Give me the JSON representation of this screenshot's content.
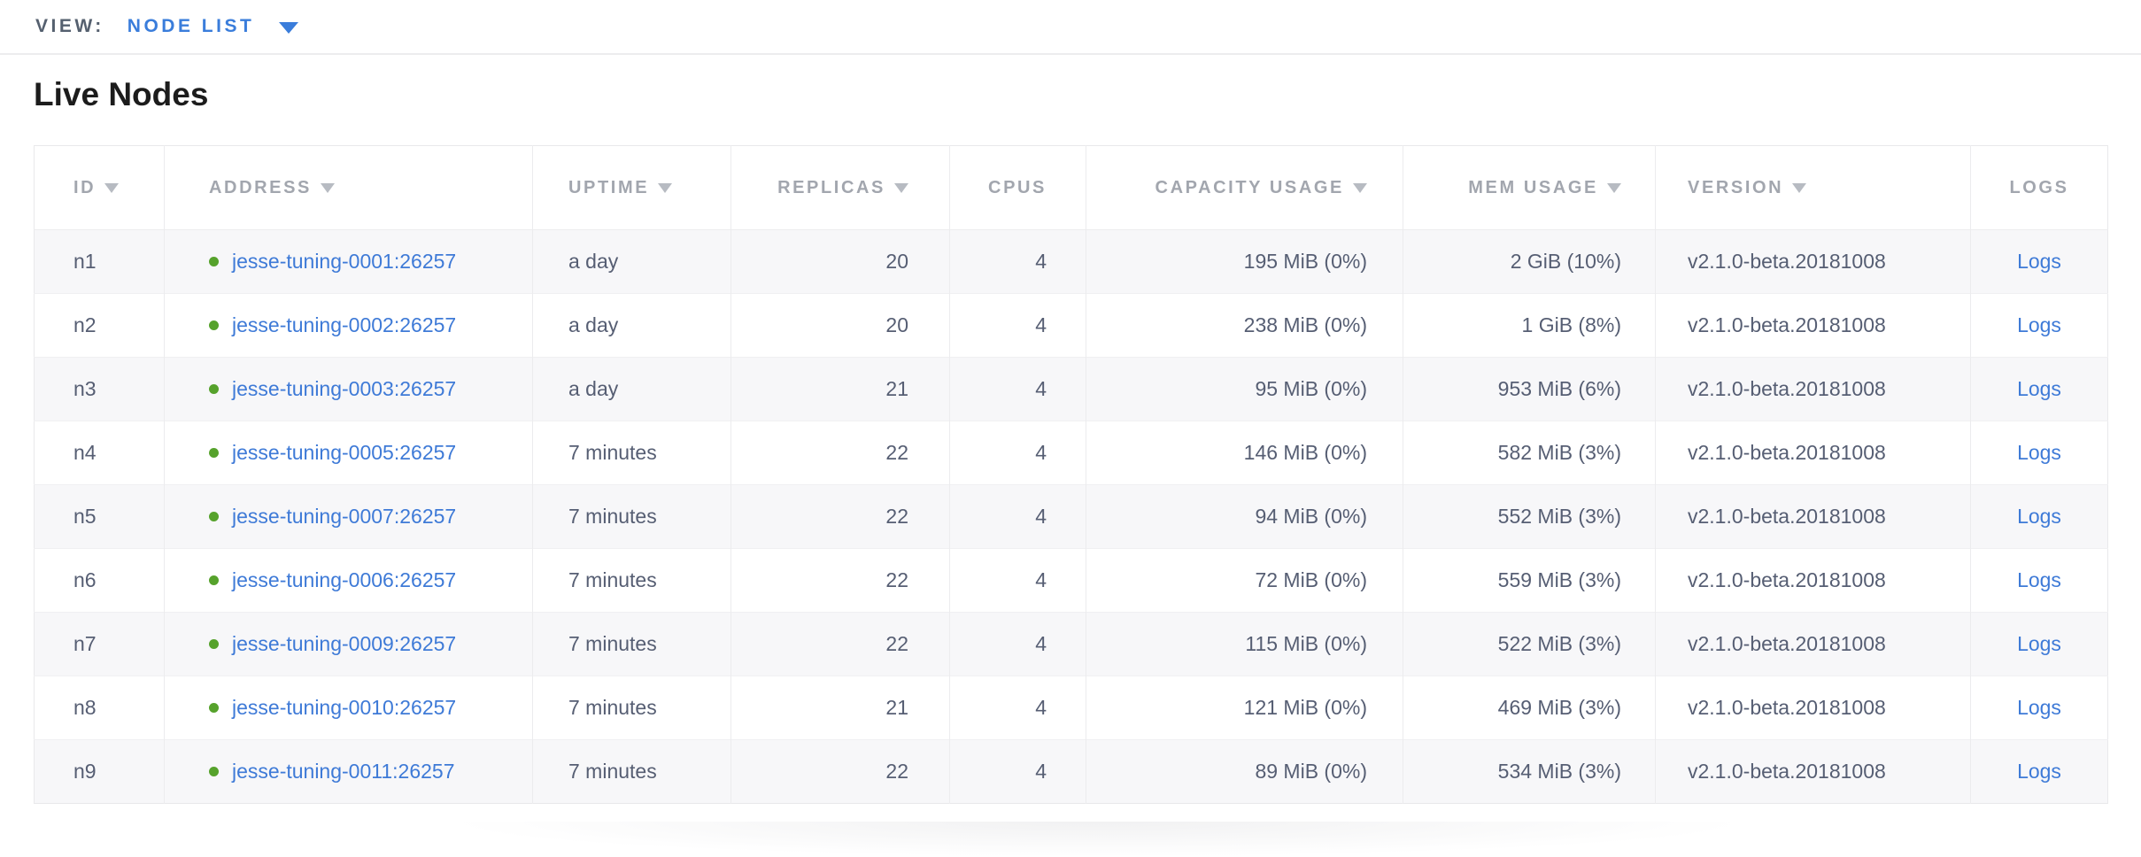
{
  "topbar": {
    "view_label": "VIEW:",
    "view_value": "NODE LIST"
  },
  "page": {
    "title": "Live Nodes"
  },
  "colors": {
    "accent_blue": "#3a7ddb",
    "link_blue": "#3e7ad7",
    "live_green": "#56a22c",
    "header_gray": "#a2a6ae",
    "cell_slate": "#565e73",
    "row_alt_bg": "#f7f7f9"
  },
  "icons": {
    "dropdown_caret": "caret-down",
    "sort_caret": "caret-down-filled",
    "node_status": "live-green-dot"
  },
  "table": {
    "columns": [
      {
        "key": "id",
        "label": "ID",
        "sortable": true
      },
      {
        "key": "address",
        "label": "ADDRESS",
        "sortable": true
      },
      {
        "key": "uptime",
        "label": "UPTIME",
        "sortable": true
      },
      {
        "key": "replicas",
        "label": "REPLICAS",
        "sortable": true
      },
      {
        "key": "cpus",
        "label": "CPUS",
        "sortable": false
      },
      {
        "key": "capacity",
        "label": "CAPACITY USAGE",
        "sortable": true
      },
      {
        "key": "mem",
        "label": "MEM USAGE",
        "sortable": true
      },
      {
        "key": "version",
        "label": "VERSION",
        "sortable": true
      },
      {
        "key": "logs",
        "label": "LOGS",
        "sortable": false
      }
    ],
    "rows": [
      {
        "id": "n1",
        "address": "jesse-tuning-0001:26257",
        "uptime": "a day",
        "replicas": "20",
        "cpus": "4",
        "capacity": "195 MiB (0%)",
        "mem": "2 GiB (10%)",
        "version": "v2.1.0-beta.20181008",
        "logs": "Logs"
      },
      {
        "id": "n2",
        "address": "jesse-tuning-0002:26257",
        "uptime": "a day",
        "replicas": "20",
        "cpus": "4",
        "capacity": "238 MiB (0%)",
        "mem": "1 GiB (8%)",
        "version": "v2.1.0-beta.20181008",
        "logs": "Logs"
      },
      {
        "id": "n3",
        "address": "jesse-tuning-0003:26257",
        "uptime": "a day",
        "replicas": "21",
        "cpus": "4",
        "capacity": "95 MiB (0%)",
        "mem": "953 MiB (6%)",
        "version": "v2.1.0-beta.20181008",
        "logs": "Logs"
      },
      {
        "id": "n4",
        "address": "jesse-tuning-0005:26257",
        "uptime": "7 minutes",
        "replicas": "22",
        "cpus": "4",
        "capacity": "146 MiB (0%)",
        "mem": "582 MiB (3%)",
        "version": "v2.1.0-beta.20181008",
        "logs": "Logs"
      },
      {
        "id": "n5",
        "address": "jesse-tuning-0007:26257",
        "uptime": "7 minutes",
        "replicas": "22",
        "cpus": "4",
        "capacity": "94 MiB (0%)",
        "mem": "552 MiB (3%)",
        "version": "v2.1.0-beta.20181008",
        "logs": "Logs"
      },
      {
        "id": "n6",
        "address": "jesse-tuning-0006:26257",
        "uptime": "7 minutes",
        "replicas": "22",
        "cpus": "4",
        "capacity": "72 MiB (0%)",
        "mem": "559 MiB (3%)",
        "version": "v2.1.0-beta.20181008",
        "logs": "Logs"
      },
      {
        "id": "n7",
        "address": "jesse-tuning-0009:26257",
        "uptime": "7 minutes",
        "replicas": "22",
        "cpus": "4",
        "capacity": "115 MiB (0%)",
        "mem": "522 MiB (3%)",
        "version": "v2.1.0-beta.20181008",
        "logs": "Logs"
      },
      {
        "id": "n8",
        "address": "jesse-tuning-0010:26257",
        "uptime": "7 minutes",
        "replicas": "21",
        "cpus": "4",
        "capacity": "121 MiB (0%)",
        "mem": "469 MiB (3%)",
        "version": "v2.1.0-beta.20181008",
        "logs": "Logs"
      },
      {
        "id": "n9",
        "address": "jesse-tuning-0011:26257",
        "uptime": "7 minutes",
        "replicas": "22",
        "cpus": "4",
        "capacity": "89 MiB (0%)",
        "mem": "534 MiB (3%)",
        "version": "v2.1.0-beta.20181008",
        "logs": "Logs"
      }
    ]
  }
}
